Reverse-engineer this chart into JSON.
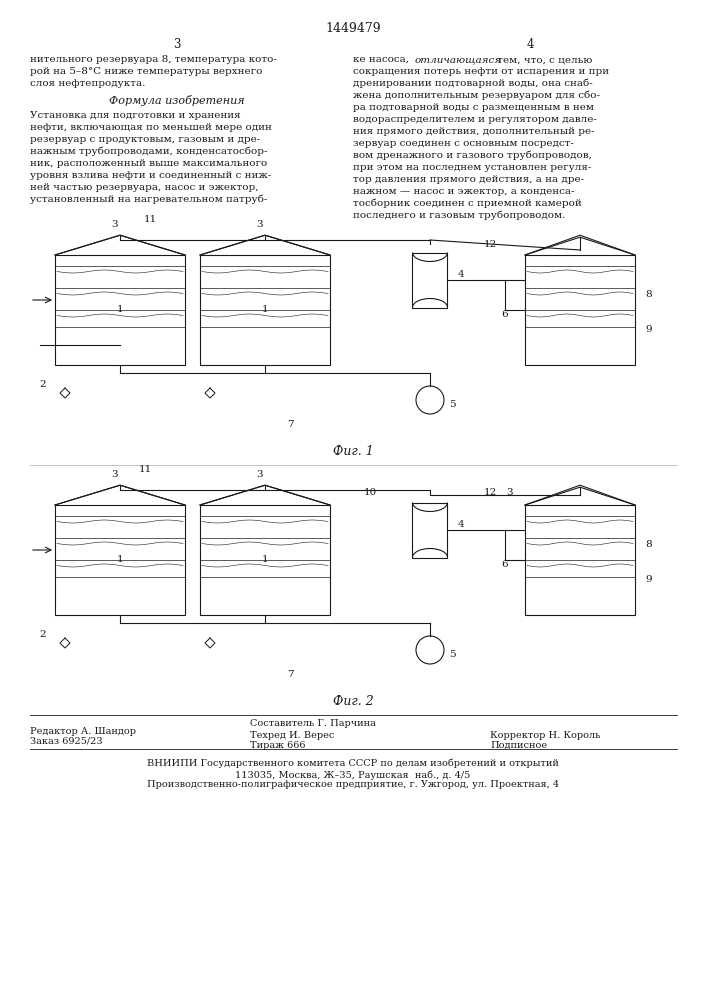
{
  "patent_number": "1449479",
  "col_left_num": "3",
  "col_right_num": "4",
  "left_col_text": [
    "нительного резервуара 8, температура кото-",
    "рой на 5–8°С ниже температуры верхнего",
    "слоя нефтепродукта."
  ],
  "formula_header": "Формула изобретения",
  "formula_text": [
    "Установка для подготовки и хранения",
    "нефти, включающая по меньшей мере один",
    "резервуар с продуктовым, газовым и дре-",
    "нажным трубопроводами, конденсатосбор-",
    "ник, расположенный выше максимального",
    "уровня взлива нефти и соединенный с ниж-",
    "ней частью резервуара, насос и эжектор,",
    "установленный на нагревательном патруб-"
  ],
  "right_col_text": [
    "ке насоса, отличающаяся тем, что, с целью",
    "сокращения потерь нефти от испарения и при",
    "дренировании подтоварной воды, она снаб-",
    "жена дополнительным резервуаром для сбо-",
    "ра подтоварной воды с размещенным в нем",
    "водораспределителем и регулятором давле-",
    "ния прямого действия, дополнительный ре-",
    "зервуар соединен с основным посредст-",
    "вом дренажного и газового трубопроводов,",
    "при этом на последнем установлен регуля-",
    "тор давления прямого действия, а на дре-",
    "нажном — насос и эжектор, а конденса-",
    "тосборник соединен с приемной камерой",
    "последнего и газовым трубопроводом."
  ],
  "fig1_label": "Фиг. 1",
  "fig2_label": "Фиг. 2",
  "editor_line1": "Редактор А. Шандор",
  "editor_line2": "Заказ 6925/23",
  "compiler_line1": "Составитель Г. Парчина",
  "tech_line1": "Техред И. Верес",
  "tech_line2": "Тираж 666",
  "corrector_line1": "Корректор Н. Король",
  "corrector_line2": "Подписное",
  "vniipи_line1": "ВНИИПИ Государственного комитета СССР по делам изобретений и открытий",
  "vniipи_line2": "113035, Москва, Ж–35, Раушская  наб., д. 4/5",
  "vniipи_line3": "Производственно-полиграфическое предприятие, г. Ужгород, ул. Проектная, 4",
  "bg_color": "#ffffff",
  "text_color": "#1a1a1a",
  "line_color": "#1a1a1a"
}
